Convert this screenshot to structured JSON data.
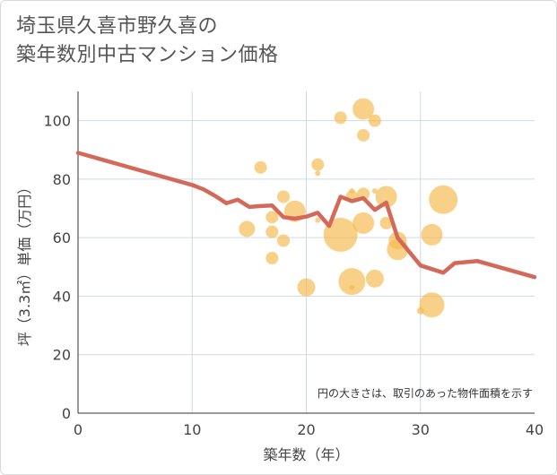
{
  "title_line1": "埼玉県久喜市野久喜の",
  "title_line2": "築年数別中古マンション価格",
  "note": "円の大きさは、取引のあった物件面積を示す",
  "colors": {
    "line": "#d4695a",
    "bubble": "#f5b94e",
    "grid": "#d0dbe4",
    "text": "#444444"
  },
  "chart_data": {
    "type": "scatter",
    "xlabel": "築年数（年）",
    "ylabel": "坪（3.3㎡）単価（万円）",
    "xlim": [
      0,
      40
    ],
    "ylim": [
      0,
      110
    ],
    "xticks": [
      "0",
      "10",
      "20",
      "30",
      "40"
    ],
    "yticks": [
      "0",
      "20",
      "40",
      "60",
      "80",
      "100"
    ],
    "grid": true,
    "trend_line": {
      "x": [
        0,
        5,
        10,
        11,
        12,
        13,
        14,
        15,
        16,
        17,
        18,
        19,
        20,
        21,
        22,
        23,
        24,
        25,
        26,
        27,
        28,
        30,
        32,
        33,
        35,
        40
      ],
      "y": [
        89,
        83.5,
        78,
        76.5,
        74.3,
        71.8,
        73,
        70.5,
        70.8,
        71,
        67,
        66.5,
        67.2,
        68.5,
        64,
        74,
        72.5,
        73.5,
        69.5,
        72,
        60,
        50.5,
        48,
        51.3,
        52,
        46.5
      ]
    },
    "bubbles": [
      {
        "x": 14.8,
        "y": 63,
        "size": 9
      },
      {
        "x": 16,
        "y": 84,
        "size": 7
      },
      {
        "x": 17,
        "y": 67,
        "size": 7
      },
      {
        "x": 17,
        "y": 62,
        "size": 7
      },
      {
        "x": 17,
        "y": 53,
        "size": 7
      },
      {
        "x": 18,
        "y": 74,
        "size": 7
      },
      {
        "x": 18,
        "y": 59,
        "size": 7
      },
      {
        "x": 19,
        "y": 69,
        "size": 12
      },
      {
        "x": 20,
        "y": 43,
        "size": 10
      },
      {
        "x": 21,
        "y": 85,
        "size": 7
      },
      {
        "x": 21,
        "y": 82,
        "size": 3
      },
      {
        "x": 21,
        "y": 66,
        "size": 3
      },
      {
        "x": 23,
        "y": 101,
        "size": 7
      },
      {
        "x": 23,
        "y": 61,
        "size": 19
      },
      {
        "x": 24,
        "y": 76,
        "size": 3
      },
      {
        "x": 24,
        "y": 74,
        "size": 7
      },
      {
        "x": 24,
        "y": 45,
        "size": 15
      },
      {
        "x": 24,
        "y": 43,
        "size": 3
      },
      {
        "x": 25,
        "y": 104,
        "size": 12
      },
      {
        "x": 25,
        "y": 95,
        "size": 7
      },
      {
        "x": 25,
        "y": 75,
        "size": 7
      },
      {
        "x": 25,
        "y": 65,
        "size": 12
      },
      {
        "x": 26,
        "y": 100,
        "size": 7
      },
      {
        "x": 26,
        "y": 76,
        "size": 3
      },
      {
        "x": 26,
        "y": 46,
        "size": 10
      },
      {
        "x": 27,
        "y": 74,
        "size": 12
      },
      {
        "x": 27,
        "y": 65,
        "size": 7
      },
      {
        "x": 28,
        "y": 59,
        "size": 10
      },
      {
        "x": 28,
        "y": 56,
        "size": 12
      },
      {
        "x": 30,
        "y": 35,
        "size": 4
      },
      {
        "x": 31,
        "y": 61,
        "size": 12
      },
      {
        "x": 31,
        "y": 37,
        "size": 14
      },
      {
        "x": 32,
        "y": 73,
        "size": 16
      }
    ]
  }
}
